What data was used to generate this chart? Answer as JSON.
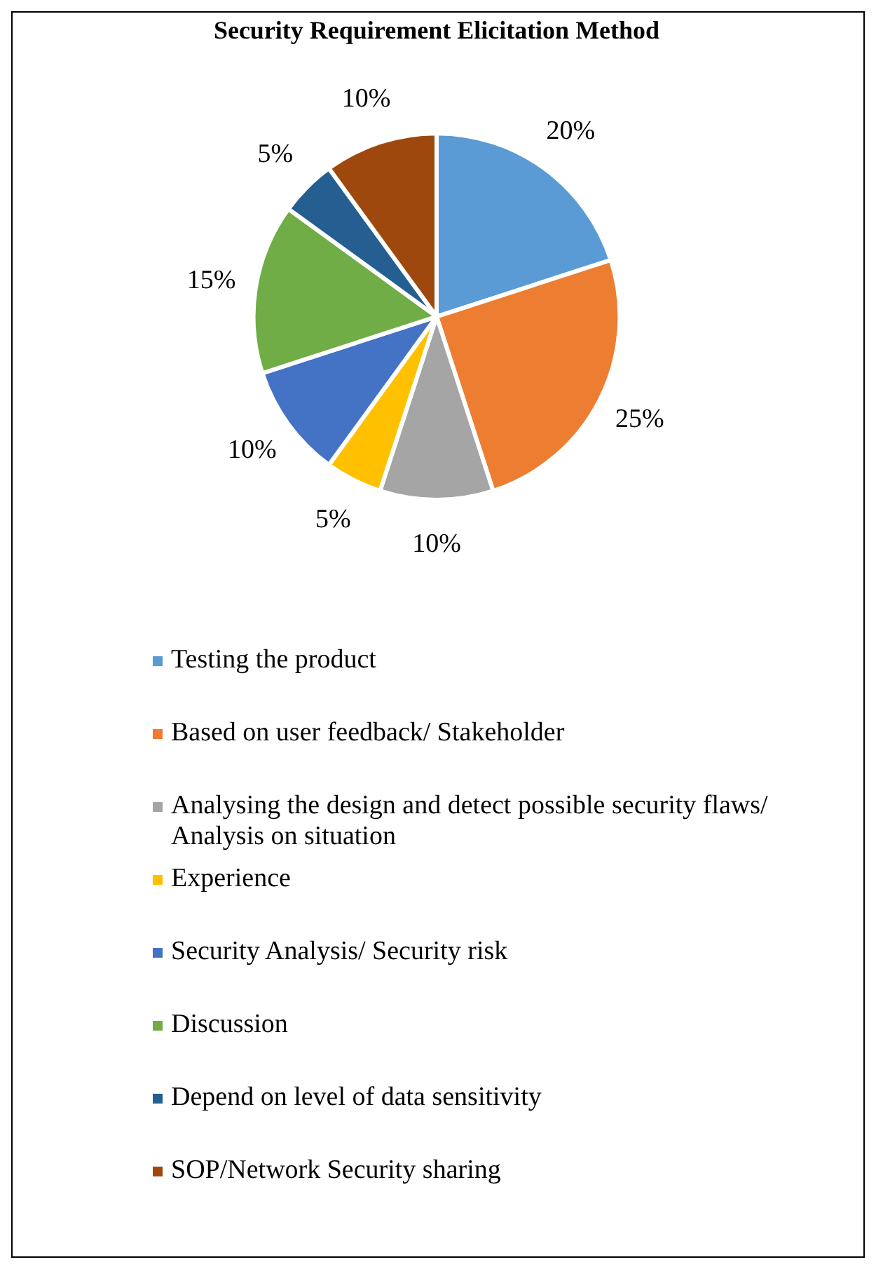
{
  "chart_data": {
    "type": "pie",
    "title": "Security Requirement Elicitation Method",
    "categories": [
      "Testing the product",
      "Based on user feedback/ Stakeholder",
      "Analysing the design and detect possible security flaws/ Analysis on situation",
      "Experience",
      "Security Analysis/ Security risk",
      "Discussion",
      "Depend on level of data sensitivity",
      "SOP/Network Security sharing"
    ],
    "values": [
      20,
      25,
      10,
      5,
      10,
      15,
      5,
      10
    ],
    "colors": [
      "#5b9bd5",
      "#ed7d31",
      "#a5a5a5",
      "#ffc000",
      "#4472c4",
      "#70ad47",
      "#255e91",
      "#9e480e"
    ],
    "value_labels": [
      "20%",
      "25%",
      "10%",
      "5%",
      "10%",
      "15%",
      "5%",
      "10%"
    ],
    "legend": "bottom"
  }
}
